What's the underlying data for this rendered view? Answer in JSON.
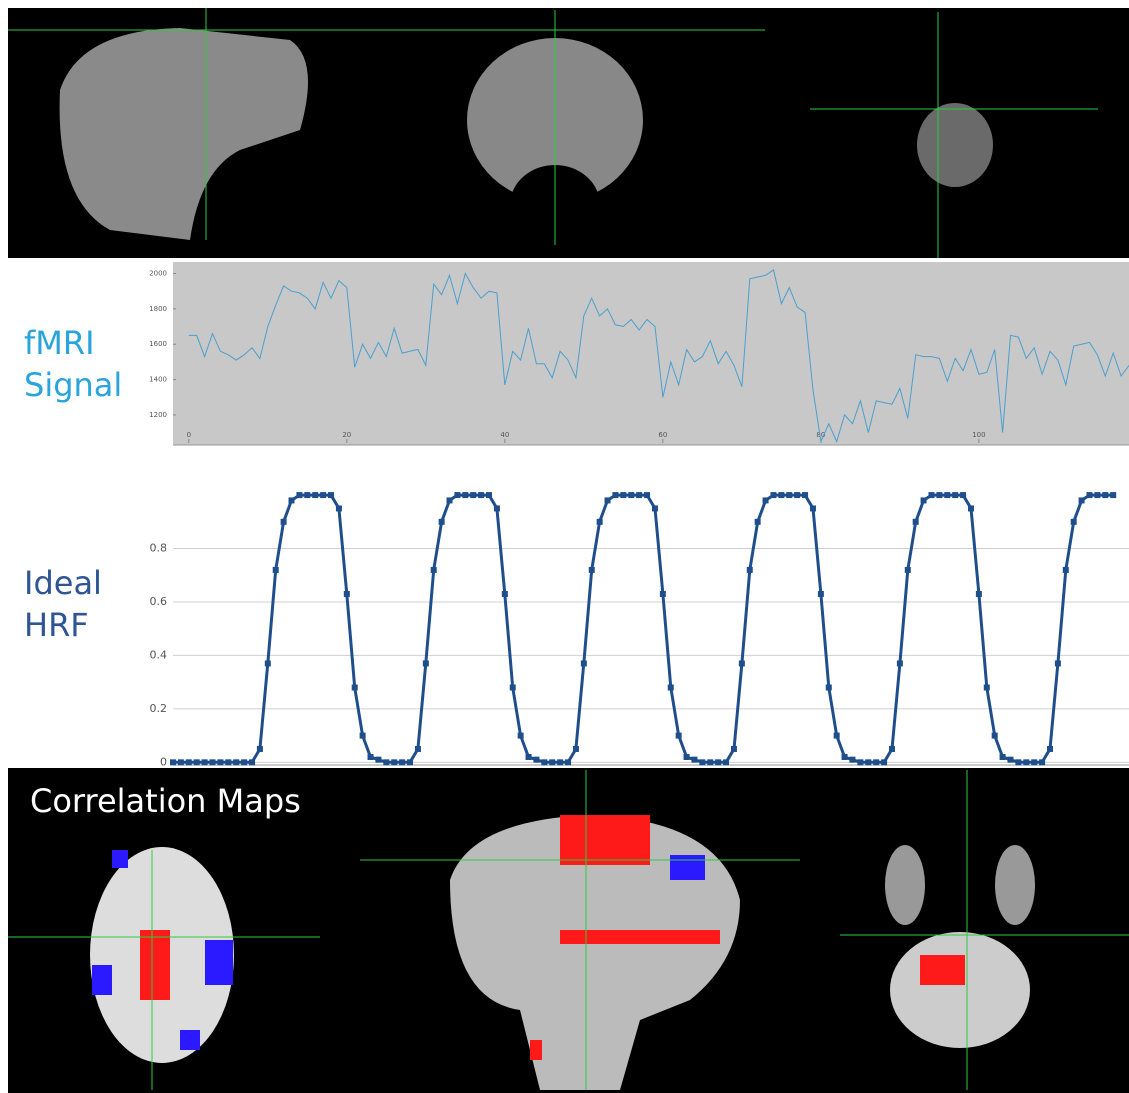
{
  "chart_data": [
    {
      "type": "line",
      "title": "fMRI Signal",
      "title_color": "#2aa4dc",
      "background": "#c8c8c8",
      "x": [
        0,
        1,
        2,
        3,
        4,
        5,
        6,
        7,
        8,
        9,
        10,
        11,
        12,
        13,
        14,
        15,
        16,
        17,
        18,
        19,
        20,
        21,
        22,
        23,
        24,
        25,
        26,
        27,
        28,
        29,
        30,
        31,
        32,
        33,
        34,
        35,
        36,
        37,
        38,
        39,
        40,
        41,
        42,
        43,
        44,
        45,
        46,
        47,
        48,
        49,
        50,
        51,
        52,
        53,
        54,
        55,
        56,
        57,
        58,
        59,
        60,
        61,
        62,
        63,
        64,
        65,
        66,
        67,
        68,
        69,
        70,
        71,
        72,
        73,
        74,
        75,
        76,
        77,
        78,
        79,
        80,
        81,
        82,
        83,
        84,
        85,
        86,
        87,
        88,
        89,
        90,
        91,
        92,
        93,
        94,
        95,
        96,
        97,
        98,
        99,
        100,
        101,
        102,
        103,
        104,
        105,
        106,
        107,
        108,
        109,
        110,
        111,
        112,
        113,
        114,
        115,
        116,
        117,
        118,
        119
      ],
      "series": [
        {
          "color": "#4a9fd0",
          "width": 1,
          "markers": false,
          "values": [
            1650,
            1650,
            1530,
            1660,
            1560,
            1540,
            1510,
            1540,
            1580,
            1520,
            1700,
            1820,
            1930,
            1900,
            1890,
            1860,
            1800,
            1950,
            1860,
            1960,
            1920,
            1470,
            1600,
            1520,
            1610,
            1530,
            1690,
            1550,
            1560,
            1570,
            1480,
            1940,
            1880,
            1990,
            1830,
            2000,
            1920,
            1860,
            1900,
            1890,
            1370,
            1560,
            1510,
            1690,
            1490,
            1490,
            1410,
            1560,
            1510,
            1410,
            1760,
            1860,
            1760,
            1800,
            1710,
            1700,
            1740,
            1680,
            1740,
            1700,
            1300,
            1500,
            1370,
            1570,
            1500,
            1530,
            1620,
            1490,
            1560,
            1480,
            1360,
            1970,
            1980,
            1990,
            2020,
            1830,
            1920,
            1810,
            1780,
            1340,
            1050,
            1150,
            1050,
            1200,
            1150,
            1280,
            1100,
            1280,
            1270,
            1260,
            1350,
            1180,
            1540,
            1530,
            1530,
            1520,
            1390,
            1520,
            1450,
            1570,
            1430,
            1440,
            1570,
            1100,
            1650,
            1640,
            1520,
            1580,
            1430,
            1560,
            1510,
            1370,
            1590,
            1600,
            1610,
            1540,
            1420,
            1550,
            1420,
            1480
          ]
        }
      ],
      "xlim": [
        -2,
        119
      ],
      "ylim": [
        1030,
        2065
      ],
      "xticks": [
        0,
        20,
        40,
        60,
        80,
        100
      ],
      "yticks": [
        1200,
        1400,
        1600,
        1800,
        2000
      ],
      "grid": false
    },
    {
      "type": "line",
      "title": "Ideal HRF",
      "title_color": "#2f5597",
      "background": "#ffffff",
      "x": [
        0,
        1,
        2,
        3,
        4,
        5,
        6,
        7,
        8,
        9,
        10,
        11,
        12,
        13,
        14,
        15,
        16,
        17,
        18,
        19,
        20,
        21,
        22,
        23,
        24,
        25,
        26,
        27,
        28,
        29,
        30,
        31,
        32,
        33,
        34,
        35,
        36,
        37,
        38,
        39,
        40,
        41,
        42,
        43,
        44,
        45,
        46,
        47,
        48,
        49,
        50,
        51,
        52,
        53,
        54,
        55,
        56,
        57,
        58,
        59,
        60,
        61,
        62,
        63,
        64,
        65,
        66,
        67,
        68,
        69,
        70,
        71,
        72,
        73,
        74,
        75,
        76,
        77,
        78,
        79,
        80,
        81,
        82,
        83,
        84,
        85,
        86,
        87,
        88,
        89,
        90,
        91,
        92,
        93,
        94,
        95,
        96,
        97,
        98,
        99,
        100,
        101,
        102,
        103,
        104,
        105,
        106,
        107,
        108,
        109,
        110,
        111,
        112,
        113,
        114,
        115,
        116,
        117,
        118,
        119
      ],
      "series": [
        {
          "color": "#1f4e8c",
          "width": 3,
          "markers": true,
          "values": [
            0,
            0,
            0,
            0,
            0,
            0,
            0,
            0,
            0,
            0,
            0,
            0.05,
            0.37,
            0.72,
            0.9,
            0.98,
            1,
            1,
            1,
            1,
            1,
            0.95,
            0.63,
            0.28,
            0.1,
            0.02,
            0.01,
            0,
            0,
            0,
            0,
            0.05,
            0.37,
            0.72,
            0.9,
            0.98,
            1,
            1,
            1,
            1,
            1,
            0.95,
            0.63,
            0.28,
            0.1,
            0.02,
            0.01,
            0,
            0,
            0,
            0,
            0.05,
            0.37,
            0.72,
            0.9,
            0.98,
            1,
            1,
            1,
            1,
            1,
            0.95,
            0.63,
            0.28,
            0.1,
            0.02,
            0.01,
            0,
            0,
            0,
            0,
            0.05,
            0.37,
            0.72,
            0.9,
            0.98,
            1,
            1,
            1,
            1,
            1,
            0.95,
            0.63,
            0.28,
            0.1,
            0.02,
            0.01,
            0,
            0,
            0,
            0,
            0.05,
            0.37,
            0.72,
            0.9,
            0.98,
            1,
            1,
            1,
            1,
            1,
            0.95,
            0.63,
            0.28,
            0.1,
            0.02,
            0.01,
            0,
            0,
            0,
            0,
            0.05,
            0.37,
            0.72,
            0.9,
            0.98,
            1,
            1,
            1,
            1
          ]
        }
      ],
      "xlim": [
        0,
        121
      ],
      "ylim": [
        -0.01,
        1.15
      ],
      "yticks": [
        0,
        0.2,
        0.4,
        0.6,
        0.8
      ],
      "grid": true
    }
  ],
  "caption": "Correlation Maps"
}
